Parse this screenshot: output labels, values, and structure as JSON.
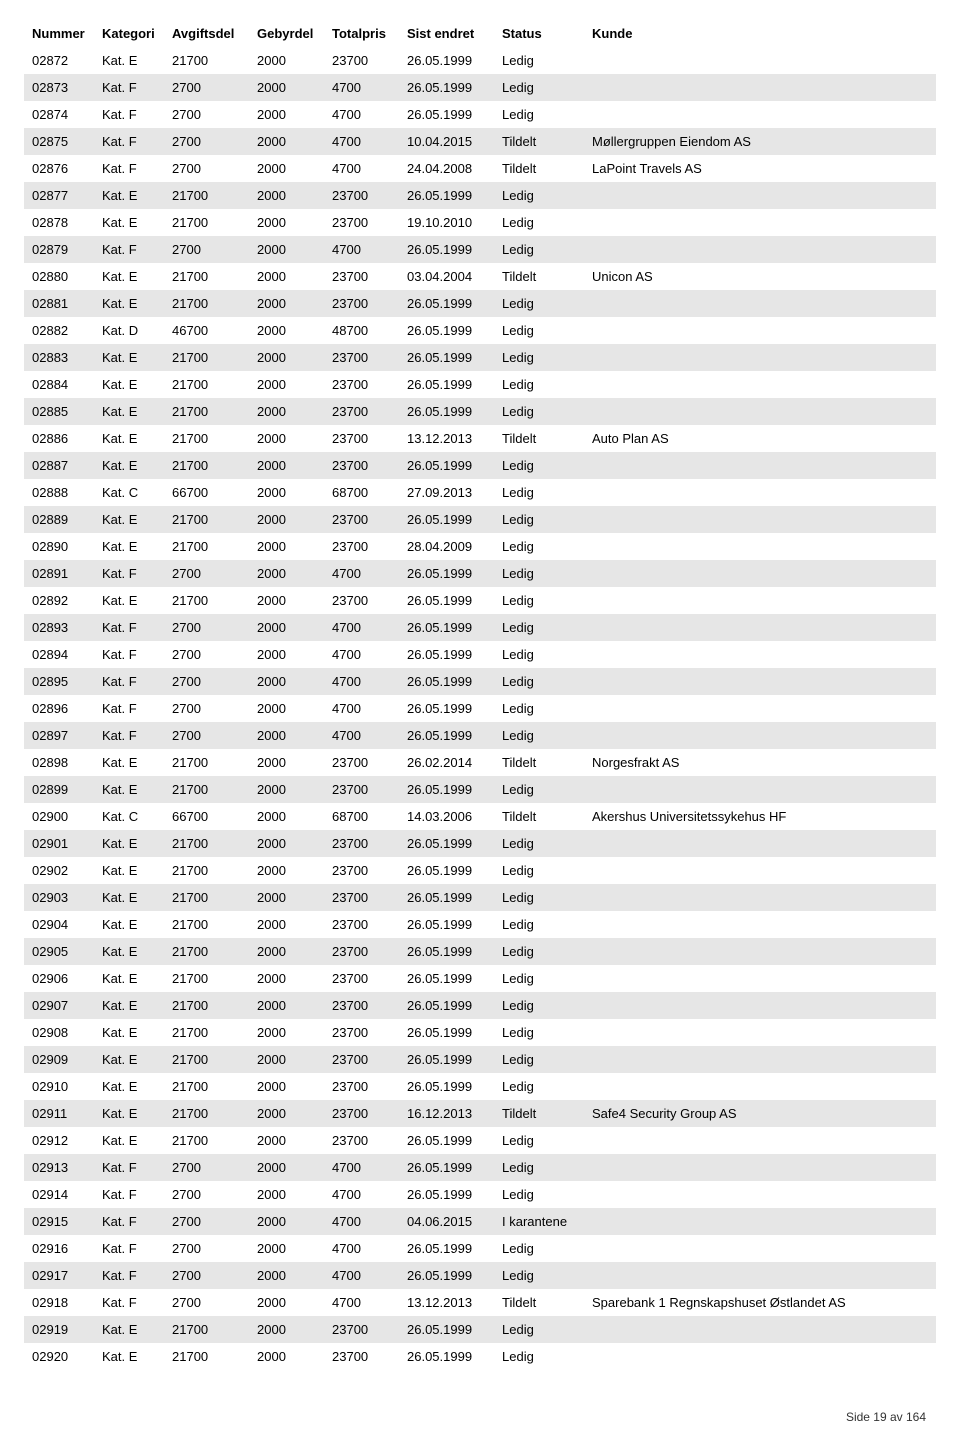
{
  "headers": {
    "nummer": "Nummer",
    "kategori": "Kategori",
    "avgiftsdel": "Avgiftsdel",
    "gebyrdel": "Gebyrdel",
    "totalpris": "Totalpris",
    "sist_endret": "Sist endret",
    "status": "Status",
    "kunde": "Kunde"
  },
  "rows": [
    {
      "nummer": "02872",
      "kategori": "Kat. E",
      "avgiftsdel": "21700",
      "gebyrdel": "2000",
      "totalpris": "23700",
      "sist_endret": "26.05.1999",
      "status": "Ledig",
      "kunde": ""
    },
    {
      "nummer": "02873",
      "kategori": "Kat. F",
      "avgiftsdel": "2700",
      "gebyrdel": "2000",
      "totalpris": "4700",
      "sist_endret": "26.05.1999",
      "status": "Ledig",
      "kunde": ""
    },
    {
      "nummer": "02874",
      "kategori": "Kat. F",
      "avgiftsdel": "2700",
      "gebyrdel": "2000",
      "totalpris": "4700",
      "sist_endret": "26.05.1999",
      "status": "Ledig",
      "kunde": ""
    },
    {
      "nummer": "02875",
      "kategori": "Kat. F",
      "avgiftsdel": "2700",
      "gebyrdel": "2000",
      "totalpris": "4700",
      "sist_endret": "10.04.2015",
      "status": "Tildelt",
      "kunde": "Møllergruppen Eiendom AS"
    },
    {
      "nummer": "02876",
      "kategori": "Kat. F",
      "avgiftsdel": "2700",
      "gebyrdel": "2000",
      "totalpris": "4700",
      "sist_endret": "24.04.2008",
      "status": "Tildelt",
      "kunde": "LaPoint Travels AS"
    },
    {
      "nummer": "02877",
      "kategori": "Kat. E",
      "avgiftsdel": "21700",
      "gebyrdel": "2000",
      "totalpris": "23700",
      "sist_endret": "26.05.1999",
      "status": "Ledig",
      "kunde": ""
    },
    {
      "nummer": "02878",
      "kategori": "Kat. E",
      "avgiftsdel": "21700",
      "gebyrdel": "2000",
      "totalpris": "23700",
      "sist_endret": "19.10.2010",
      "status": "Ledig",
      "kunde": ""
    },
    {
      "nummer": "02879",
      "kategori": "Kat. F",
      "avgiftsdel": "2700",
      "gebyrdel": "2000",
      "totalpris": "4700",
      "sist_endret": "26.05.1999",
      "status": "Ledig",
      "kunde": ""
    },
    {
      "nummer": "02880",
      "kategori": "Kat. E",
      "avgiftsdel": "21700",
      "gebyrdel": "2000",
      "totalpris": "23700",
      "sist_endret": "03.04.2004",
      "status": "Tildelt",
      "kunde": "Unicon AS"
    },
    {
      "nummer": "02881",
      "kategori": "Kat. E",
      "avgiftsdel": "21700",
      "gebyrdel": "2000",
      "totalpris": "23700",
      "sist_endret": "26.05.1999",
      "status": "Ledig",
      "kunde": ""
    },
    {
      "nummer": "02882",
      "kategori": "Kat. D",
      "avgiftsdel": "46700",
      "gebyrdel": "2000",
      "totalpris": "48700",
      "sist_endret": "26.05.1999",
      "status": "Ledig",
      "kunde": ""
    },
    {
      "nummer": "02883",
      "kategori": "Kat. E",
      "avgiftsdel": "21700",
      "gebyrdel": "2000",
      "totalpris": "23700",
      "sist_endret": "26.05.1999",
      "status": "Ledig",
      "kunde": ""
    },
    {
      "nummer": "02884",
      "kategori": "Kat. E",
      "avgiftsdel": "21700",
      "gebyrdel": "2000",
      "totalpris": "23700",
      "sist_endret": "26.05.1999",
      "status": "Ledig",
      "kunde": ""
    },
    {
      "nummer": "02885",
      "kategori": "Kat. E",
      "avgiftsdel": "21700",
      "gebyrdel": "2000",
      "totalpris": "23700",
      "sist_endret": "26.05.1999",
      "status": "Ledig",
      "kunde": ""
    },
    {
      "nummer": "02886",
      "kategori": "Kat. E",
      "avgiftsdel": "21700",
      "gebyrdel": "2000",
      "totalpris": "23700",
      "sist_endret": "13.12.2013",
      "status": "Tildelt",
      "kunde": "Auto Plan AS"
    },
    {
      "nummer": "02887",
      "kategori": "Kat. E",
      "avgiftsdel": "21700",
      "gebyrdel": "2000",
      "totalpris": "23700",
      "sist_endret": "26.05.1999",
      "status": "Ledig",
      "kunde": ""
    },
    {
      "nummer": "02888",
      "kategori": "Kat. C",
      "avgiftsdel": "66700",
      "gebyrdel": "2000",
      "totalpris": "68700",
      "sist_endret": "27.09.2013",
      "status": "Ledig",
      "kunde": ""
    },
    {
      "nummer": "02889",
      "kategori": "Kat. E",
      "avgiftsdel": "21700",
      "gebyrdel": "2000",
      "totalpris": "23700",
      "sist_endret": "26.05.1999",
      "status": "Ledig",
      "kunde": ""
    },
    {
      "nummer": "02890",
      "kategori": "Kat. E",
      "avgiftsdel": "21700",
      "gebyrdel": "2000",
      "totalpris": "23700",
      "sist_endret": "28.04.2009",
      "status": "Ledig",
      "kunde": ""
    },
    {
      "nummer": "02891",
      "kategori": "Kat. F",
      "avgiftsdel": "2700",
      "gebyrdel": "2000",
      "totalpris": "4700",
      "sist_endret": "26.05.1999",
      "status": "Ledig",
      "kunde": ""
    },
    {
      "nummer": "02892",
      "kategori": "Kat. E",
      "avgiftsdel": "21700",
      "gebyrdel": "2000",
      "totalpris": "23700",
      "sist_endret": "26.05.1999",
      "status": "Ledig",
      "kunde": ""
    },
    {
      "nummer": "02893",
      "kategori": "Kat. F",
      "avgiftsdel": "2700",
      "gebyrdel": "2000",
      "totalpris": "4700",
      "sist_endret": "26.05.1999",
      "status": "Ledig",
      "kunde": ""
    },
    {
      "nummer": "02894",
      "kategori": "Kat. F",
      "avgiftsdel": "2700",
      "gebyrdel": "2000",
      "totalpris": "4700",
      "sist_endret": "26.05.1999",
      "status": "Ledig",
      "kunde": ""
    },
    {
      "nummer": "02895",
      "kategori": "Kat. F",
      "avgiftsdel": "2700",
      "gebyrdel": "2000",
      "totalpris": "4700",
      "sist_endret": "26.05.1999",
      "status": "Ledig",
      "kunde": ""
    },
    {
      "nummer": "02896",
      "kategori": "Kat. F",
      "avgiftsdel": "2700",
      "gebyrdel": "2000",
      "totalpris": "4700",
      "sist_endret": "26.05.1999",
      "status": "Ledig",
      "kunde": ""
    },
    {
      "nummer": "02897",
      "kategori": "Kat. F",
      "avgiftsdel": "2700",
      "gebyrdel": "2000",
      "totalpris": "4700",
      "sist_endret": "26.05.1999",
      "status": "Ledig",
      "kunde": ""
    },
    {
      "nummer": "02898",
      "kategori": "Kat. E",
      "avgiftsdel": "21700",
      "gebyrdel": "2000",
      "totalpris": "23700",
      "sist_endret": "26.02.2014",
      "status": "Tildelt",
      "kunde": "Norgesfrakt AS"
    },
    {
      "nummer": "02899",
      "kategori": "Kat. E",
      "avgiftsdel": "21700",
      "gebyrdel": "2000",
      "totalpris": "23700",
      "sist_endret": "26.05.1999",
      "status": "Ledig",
      "kunde": ""
    },
    {
      "nummer": "02900",
      "kategori": "Kat. C",
      "avgiftsdel": "66700",
      "gebyrdel": "2000",
      "totalpris": "68700",
      "sist_endret": "14.03.2006",
      "status": "Tildelt",
      "kunde": "Akershus Universitetssykehus HF"
    },
    {
      "nummer": "02901",
      "kategori": "Kat. E",
      "avgiftsdel": "21700",
      "gebyrdel": "2000",
      "totalpris": "23700",
      "sist_endret": "26.05.1999",
      "status": "Ledig",
      "kunde": ""
    },
    {
      "nummer": "02902",
      "kategori": "Kat. E",
      "avgiftsdel": "21700",
      "gebyrdel": "2000",
      "totalpris": "23700",
      "sist_endret": "26.05.1999",
      "status": "Ledig",
      "kunde": ""
    },
    {
      "nummer": "02903",
      "kategori": "Kat. E",
      "avgiftsdel": "21700",
      "gebyrdel": "2000",
      "totalpris": "23700",
      "sist_endret": "26.05.1999",
      "status": "Ledig",
      "kunde": ""
    },
    {
      "nummer": "02904",
      "kategori": "Kat. E",
      "avgiftsdel": "21700",
      "gebyrdel": "2000",
      "totalpris": "23700",
      "sist_endret": "26.05.1999",
      "status": "Ledig",
      "kunde": ""
    },
    {
      "nummer": "02905",
      "kategori": "Kat. E",
      "avgiftsdel": "21700",
      "gebyrdel": "2000",
      "totalpris": "23700",
      "sist_endret": "26.05.1999",
      "status": "Ledig",
      "kunde": ""
    },
    {
      "nummer": "02906",
      "kategori": "Kat. E",
      "avgiftsdel": "21700",
      "gebyrdel": "2000",
      "totalpris": "23700",
      "sist_endret": "26.05.1999",
      "status": "Ledig",
      "kunde": ""
    },
    {
      "nummer": "02907",
      "kategori": "Kat. E",
      "avgiftsdel": "21700",
      "gebyrdel": "2000",
      "totalpris": "23700",
      "sist_endret": "26.05.1999",
      "status": "Ledig",
      "kunde": ""
    },
    {
      "nummer": "02908",
      "kategori": "Kat. E",
      "avgiftsdel": "21700",
      "gebyrdel": "2000",
      "totalpris": "23700",
      "sist_endret": "26.05.1999",
      "status": "Ledig",
      "kunde": ""
    },
    {
      "nummer": "02909",
      "kategori": "Kat. E",
      "avgiftsdel": "21700",
      "gebyrdel": "2000",
      "totalpris": "23700",
      "sist_endret": "26.05.1999",
      "status": "Ledig",
      "kunde": ""
    },
    {
      "nummer": "02910",
      "kategori": "Kat. E",
      "avgiftsdel": "21700",
      "gebyrdel": "2000",
      "totalpris": "23700",
      "sist_endret": "26.05.1999",
      "status": "Ledig",
      "kunde": ""
    },
    {
      "nummer": "02911",
      "kategori": "Kat. E",
      "avgiftsdel": "21700",
      "gebyrdel": "2000",
      "totalpris": "23700",
      "sist_endret": "16.12.2013",
      "status": "Tildelt",
      "kunde": "Safe4 Security Group AS"
    },
    {
      "nummer": "02912",
      "kategori": "Kat. E",
      "avgiftsdel": "21700",
      "gebyrdel": "2000",
      "totalpris": "23700",
      "sist_endret": "26.05.1999",
      "status": "Ledig",
      "kunde": ""
    },
    {
      "nummer": "02913",
      "kategori": "Kat. F",
      "avgiftsdel": "2700",
      "gebyrdel": "2000",
      "totalpris": "4700",
      "sist_endret": "26.05.1999",
      "status": "Ledig",
      "kunde": ""
    },
    {
      "nummer": "02914",
      "kategori": "Kat. F",
      "avgiftsdel": "2700",
      "gebyrdel": "2000",
      "totalpris": "4700",
      "sist_endret": "26.05.1999",
      "status": "Ledig",
      "kunde": ""
    },
    {
      "nummer": "02915",
      "kategori": "Kat. F",
      "avgiftsdel": "2700",
      "gebyrdel": "2000",
      "totalpris": "4700",
      "sist_endret": "04.06.2015",
      "status": "I karantene",
      "kunde": ""
    },
    {
      "nummer": "02916",
      "kategori": "Kat. F",
      "avgiftsdel": "2700",
      "gebyrdel": "2000",
      "totalpris": "4700",
      "sist_endret": "26.05.1999",
      "status": "Ledig",
      "kunde": ""
    },
    {
      "nummer": "02917",
      "kategori": "Kat. F",
      "avgiftsdel": "2700",
      "gebyrdel": "2000",
      "totalpris": "4700",
      "sist_endret": "26.05.1999",
      "status": "Ledig",
      "kunde": ""
    },
    {
      "nummer": "02918",
      "kategori": "Kat. F",
      "avgiftsdel": "2700",
      "gebyrdel": "2000",
      "totalpris": "4700",
      "sist_endret": "13.12.2013",
      "status": "Tildelt",
      "kunde": "Sparebank 1 Regnskapshuset Østlandet AS"
    },
    {
      "nummer": "02919",
      "kategori": "Kat. E",
      "avgiftsdel": "21700",
      "gebyrdel": "2000",
      "totalpris": "23700",
      "sist_endret": "26.05.1999",
      "status": "Ledig",
      "kunde": ""
    },
    {
      "nummer": "02920",
      "kategori": "Kat. E",
      "avgiftsdel": "21700",
      "gebyrdel": "2000",
      "totalpris": "23700",
      "sist_endret": "26.05.1999",
      "status": "Ledig",
      "kunde": ""
    }
  ],
  "footer": "Side  19 av 164",
  "colors": {
    "row_alt": "#e6e6e6",
    "background": "#ffffff",
    "text": "#000000"
  }
}
